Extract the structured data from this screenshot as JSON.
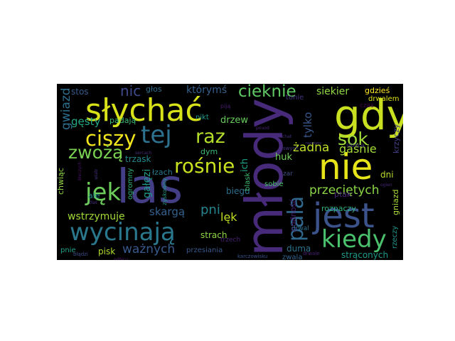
{
  "words": [
    {
      "text": "las",
      "color": "#433e85"
    },
    {
      "text": "młody",
      "color": "#472a7a"
    },
    {
      "text": "gdy",
      "color": "#c8e020"
    },
    {
      "text": "słychać",
      "color": "#d8e219"
    },
    {
      "text": "nie",
      "color": "#e7e419"
    },
    {
      "text": "jest",
      "color": "#3b528b"
    },
    {
      "text": "wycinają",
      "color": "#2a788e"
    },
    {
      "text": "ciszy",
      "color": "#f1e51d"
    },
    {
      "text": "tej",
      "color": "#2c718e"
    },
    {
      "text": "raz",
      "color": "#b5de2b"
    },
    {
      "text": "jęk",
      "color": "#6ccd5a"
    },
    {
      "text": "zwożą",
      "color": "#7ad151"
    },
    {
      "text": "rośnie",
      "color": "#cae11f"
    },
    {
      "text": "kiedy",
      "color": "#4ac16d"
    },
    {
      "text": "cieknie",
      "color": "#5ec962"
    },
    {
      "text": "sok",
      "color": "#a0da39"
    },
    {
      "text": "pala",
      "color": "#31688e"
    },
    {
      "text": "przeciętych",
      "color": "#8bd646"
    },
    {
      "text": "gaśnie",
      "color": "#a5db36"
    },
    {
      "text": "żadna",
      "color": "#bddf26"
    },
    {
      "text": "pni",
      "color": "#25858e"
    },
    {
      "text": "lęk",
      "color": "#c2df23"
    },
    {
      "text": "ważnych",
      "color": "#38598c"
    },
    {
      "text": "skargą",
      "color": "#34618d"
    },
    {
      "text": "wstrzymuje",
      "color": "#a2da37"
    },
    {
      "text": "strach",
      "color": "#90d743"
    },
    {
      "text": "duma",
      "color": "#2b748e"
    },
    {
      "text": "strąconych",
      "color": "#1f9a8a"
    },
    {
      "text": "nic",
      "color": "#3e4989"
    },
    {
      "text": "stos",
      "color": "#365c8d"
    },
    {
      "text": "którymś",
      "color": "#355f8d"
    },
    {
      "text": "głos",
      "color": "#2e6e8e"
    },
    {
      "text": "siekier",
      "color": "#8fd744"
    },
    {
      "text": "gdzieś",
      "color": "#fde725"
    },
    {
      "text": "drwalem",
      "color": "#dde318"
    },
    {
      "text": "tonie",
      "color": "#46337e"
    },
    {
      "text": "czas",
      "color": "#440154"
    },
    {
      "text": "gwiazd",
      "color": "#2e6f8e"
    },
    {
      "text": "gęsty",
      "color": "#23a983"
    },
    {
      "text": "padają",
      "color": "#3dbc74"
    },
    {
      "text": "nikt",
      "color": "#1e9c89"
    },
    {
      "text": "drzew",
      "color": "#67cc5c"
    },
    {
      "text": "piją",
      "color": "#481b6d"
    },
    {
      "text": "ich",
      "color": "#1fa287"
    },
    {
      "text": "tylko",
      "color": "#39568c"
    },
    {
      "text": "krzyczy",
      "color": "#424086"
    },
    {
      "text": "trzask",
      "color": "#24868e"
    },
    {
      "text": "dym",
      "color": "#3aba76"
    },
    {
      "text": "huk",
      "color": "#6ece58"
    },
    {
      "text": "słońca",
      "color": "#443983"
    },
    {
      "text": "łzach",
      "color": "#2a778e"
    },
    {
      "text": "gałęzi",
      "color": "#1e9b8a"
    },
    {
      "text": "biegu",
      "color": "#2d708e"
    },
    {
      "text": "zar",
      "color": "#3c4f8a"
    },
    {
      "text": "dni",
      "color": "#b8de29"
    },
    {
      "text": "ptak",
      "color": "#482576"
    },
    {
      "text": "ale",
      "color": "#23898e"
    },
    {
      "text": "chwiąc",
      "color": "#93d741"
    },
    {
      "text": "ogromny",
      "color": "#31b57b"
    },
    {
      "text": "zyskowny",
      "color": "#1f998a"
    },
    {
      "text": "blask",
      "color": "#3fbc73"
    },
    {
      "text": "sobie",
      "color": "#4cc26c"
    },
    {
      "text": "rozpaczy",
      "color": "#2db27d"
    },
    {
      "text": "godność",
      "color": "#481a6c"
    },
    {
      "text": "gniazd",
      "color": "#a8db34"
    },
    {
      "text": "rzeczy",
      "color": "#1f948c"
    },
    {
      "text": "drwal",
      "color": "#2c728e"
    },
    {
      "text": "przesiania",
      "color": "#38588c"
    },
    {
      "text": "trzech",
      "color": "#482173"
    },
    {
      "text": "pisk",
      "color": "#b0dd2f"
    },
    {
      "text": "pnie",
      "color": "#1fa188"
    },
    {
      "text": "zwala",
      "color": "#32648e"
    },
    {
      "text": "drwale",
      "color": "#482071"
    },
    {
      "text": "błądzi",
      "color": "#3d4d8a"
    },
    {
      "text": "karczowisku",
      "color": "#3b528b"
    },
    {
      "text": "pouod",
      "color": "#482374"
    },
    {
      "text": "chat",
      "color": "#46307e"
    },
    {
      "text": "swych",
      "color": "#46327e"
    },
    {
      "text": "rozwiany",
      "color": "#463480"
    },
    {
      "text": "ogien",
      "color": "#482475"
    },
    {
      "text": "wiatr",
      "color": "#46307e"
    },
    {
      "text": "złaś",
      "color": "#472d7b"
    },
    {
      "text": "błeczych",
      "color": "#471365"
    },
    {
      "text": "sercach",
      "color": "#472c7a"
    },
    {
      "text": "odbicu",
      "color": "#481769"
    }
  ]
}
